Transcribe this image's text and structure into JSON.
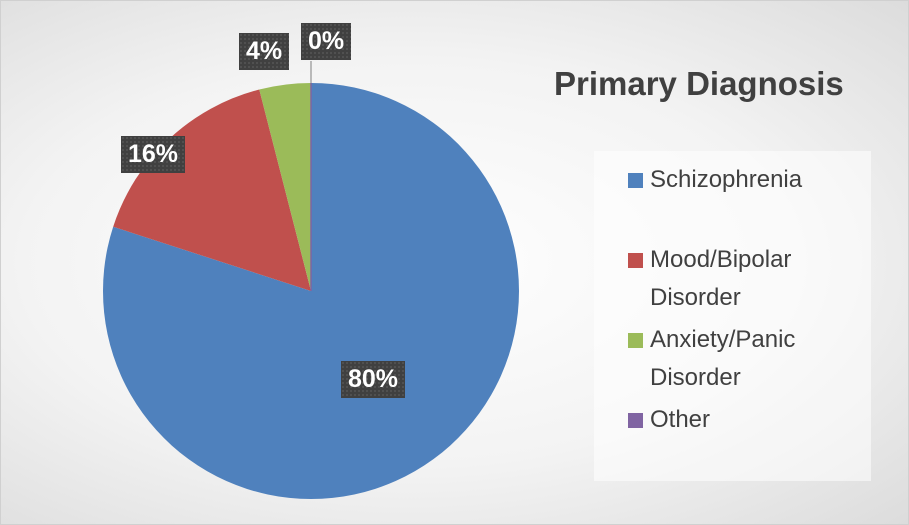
{
  "chart_data": {
    "type": "pie",
    "title": "Primary Diagnosis",
    "categories": [
      "Schizophrenia",
      "Mood/Bipolar Disorder",
      "Anxiety/Panic Disorder",
      "Other"
    ],
    "values": [
      80,
      16,
      4,
      0
    ],
    "value_labels": [
      "80%",
      "16%",
      "4%",
      "0%"
    ],
    "colors": [
      "#4f81bd",
      "#c0504d",
      "#9bbb59",
      "#8064a2"
    ],
    "legend": "right"
  }
}
